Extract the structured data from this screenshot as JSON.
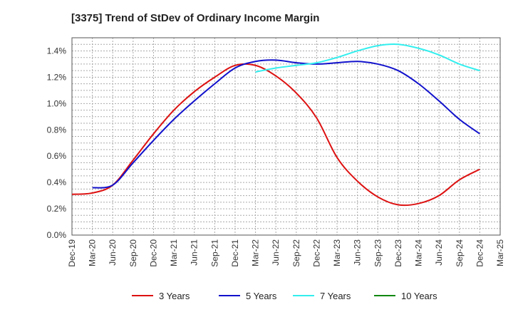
{
  "chart_data": {
    "type": "line",
    "title": "[3375]  Trend of StDev of Ordinary Income Margin",
    "xlabel": "",
    "ylabel": "",
    "x": [
      "Dec-19",
      "Mar-20",
      "Jun-20",
      "Sep-20",
      "Dec-20",
      "Mar-21",
      "Jun-21",
      "Sep-21",
      "Dec-21",
      "Mar-22",
      "Jun-22",
      "Sep-22",
      "Dec-22",
      "Mar-23",
      "Jun-23",
      "Sep-23",
      "Dec-23",
      "Mar-24",
      "Jun-24",
      "Sep-24",
      "Dec-24",
      "Mar-25"
    ],
    "y_ticks": [
      "0.0%",
      "0.2%",
      "0.4%",
      "0.6%",
      "0.8%",
      "1.0%",
      "1.2%",
      "1.4%"
    ],
    "ylim": [
      0,
      1.5
    ],
    "grid": true,
    "legend_position": "bottom",
    "series": [
      {
        "name": "3 Years",
        "color": "#dd1111",
        "values": [
          0.31,
          0.32,
          0.38,
          0.57,
          0.77,
          0.95,
          1.09,
          1.2,
          1.29,
          1.29,
          1.21,
          1.08,
          0.89,
          0.59,
          0.41,
          0.29,
          0.23,
          0.24,
          0.3,
          0.42,
          0.5,
          null
        ]
      },
      {
        "name": "5 Years",
        "color": "#1111cc",
        "values": [
          null,
          0.36,
          0.38,
          0.55,
          0.72,
          0.88,
          1.02,
          1.15,
          1.27,
          1.32,
          1.33,
          1.31,
          1.3,
          1.31,
          1.32,
          1.3,
          1.25,
          1.15,
          1.02,
          0.88,
          0.77,
          null
        ]
      },
      {
        "name": "7 Years",
        "color": "#33eeee",
        "values": [
          null,
          null,
          null,
          null,
          null,
          null,
          null,
          null,
          null,
          1.24,
          1.27,
          1.29,
          1.31,
          1.35,
          1.4,
          1.44,
          1.45,
          1.42,
          1.37,
          1.3,
          1.25,
          null
        ]
      },
      {
        "name": "10 Years",
        "color": "#118811",
        "values": [
          null,
          null,
          null,
          null,
          null,
          null,
          null,
          null,
          null,
          null,
          null,
          null,
          null,
          null,
          null,
          null,
          null,
          null,
          null,
          null,
          null,
          null
        ]
      }
    ]
  }
}
